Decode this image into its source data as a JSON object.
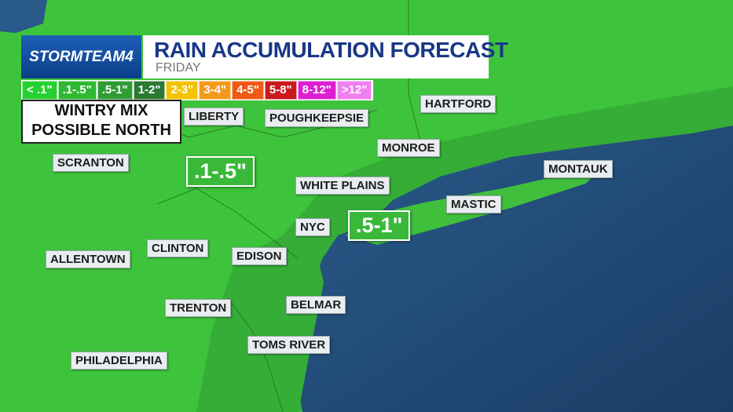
{
  "logo": "STORMTEAM4",
  "header": {
    "title": "RAIN ACCUMULATION FORECAST",
    "subtitle": "FRIDAY"
  },
  "legend": [
    {
      "label": "< .1\"",
      "color": "#24d130"
    },
    {
      "label": ".1-.5\"",
      "color": "#2fb933"
    },
    {
      "label": ".5-1\"",
      "color": "#2e9c35"
    },
    {
      "label": "1-2\"",
      "color": "#2b7a31"
    },
    {
      "label": "2-3\"",
      "color": "#f3c200"
    },
    {
      "label": "3-4\"",
      "color": "#f39a1c"
    },
    {
      "label": "4-5\"",
      "color": "#ef5a16"
    },
    {
      "label": "5-8\"",
      "color": "#c91a1f"
    },
    {
      "label": "8-12\"",
      "color": "#dd1fd4"
    },
    {
      "label": ">12\"",
      "color": "#f07ff0"
    }
  ],
  "note": [
    "WINTRY MIX",
    "POSSIBLE NORTH"
  ],
  "cities": [
    "LIBERTY",
    "POUGHKEEPSIE",
    "HARTFORD",
    "MONROE",
    "SCRANTON",
    "WHITE PLAINS",
    "MONTAUK",
    "MASTIC",
    "NYC",
    "CLINTON",
    "EDISON",
    "ALLENTOWN",
    "BELMAR",
    "TRENTON",
    "TOMS RIVER",
    "PHILADELPHIA"
  ],
  "regions": [
    ".1-.5\"",
    ".5-1\""
  ]
}
